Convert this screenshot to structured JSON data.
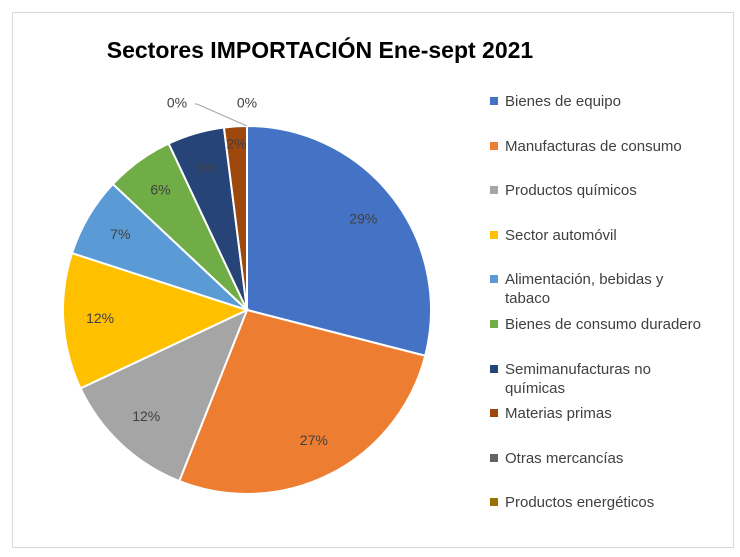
{
  "chart_data": {
    "type": "pie",
    "title": "Sectores IMPORTACIÓN Ene-sept 2021",
    "categories": [
      "Bienes de equipo",
      "Manufacturas de consumo",
      "Productos químicos",
      "Sector automóvil",
      "Alimentación, bebidas y tabaco",
      "Bienes de consumo duradero",
      "Semimanufacturas no químicas",
      "Materias primas",
      "Otras mercancías",
      "Productos energéticos"
    ],
    "values": [
      29,
      27,
      12,
      12,
      7,
      6,
      5,
      2,
      0,
      0
    ],
    "value_labels": [
      "29%",
      "27%",
      "12%",
      "12%",
      "7%",
      "6%",
      "5%",
      "2%",
      "0%",
      "0%"
    ],
    "colors": [
      "#4472c4",
      "#ed7d31",
      "#a5a5a5",
      "#ffc000",
      "#5b9bd5",
      "#70ad47",
      "#264478",
      "#9e480e",
      "#636363",
      "#997300"
    ],
    "legend": "right"
  }
}
